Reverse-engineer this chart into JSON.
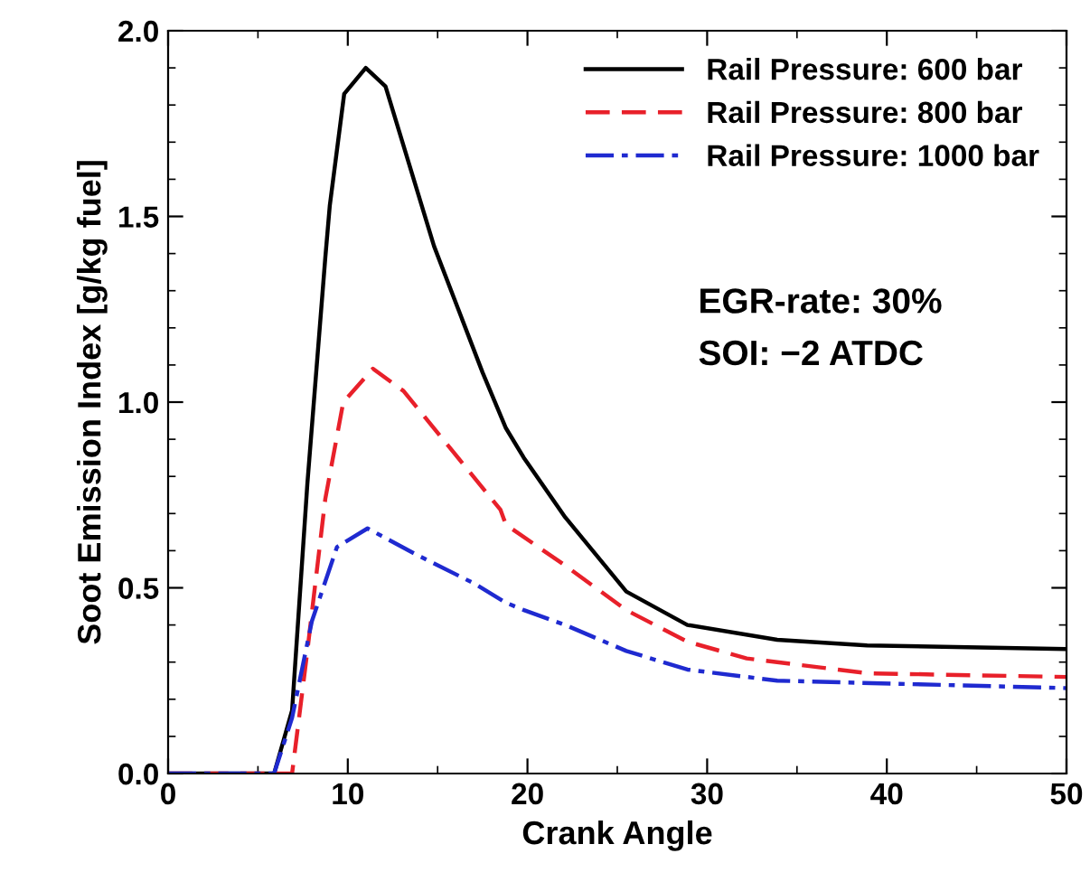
{
  "chart_data": {
    "type": "line",
    "xlabel": "Crank Angle",
    "ylabel": "Soot Emission Index [g/kg fuel]",
    "xlim": [
      0,
      50
    ],
    "ylim": [
      0,
      2.0
    ],
    "xticks": [
      0,
      10,
      20,
      30,
      40,
      50
    ],
    "yticks": [
      {
        "value": 0,
        "label": "0.0"
      },
      {
        "value": 0.5,
        "label": "0.5"
      },
      {
        "value": 1.0,
        "label": "1.0"
      },
      {
        "value": 1.5,
        "label": "1.5"
      },
      {
        "value": 2.0,
        "label": "2.0"
      }
    ],
    "grid": false,
    "legend": "top right",
    "marker": "none",
    "annotations": [
      "EGR-rate: 30%",
      "SOI: −2 ATDC"
    ],
    "series": [
      {
        "name": "Rail Pressure: 600 bar",
        "color": "#000000",
        "line_style": "solid",
        "x": [
          0,
          5.9,
          6.9,
          7.75,
          8.75,
          9.0,
          9.8,
          11.0,
          12.1,
          14.8,
          17.5,
          18.8,
          19.8,
          22.1,
          25.5,
          28.9,
          33.9,
          38.9,
          50
        ],
        "values": [
          0,
          0,
          0.17,
          0.78,
          1.39,
          1.53,
          1.83,
          1.9,
          1.85,
          1.42,
          1.08,
          0.93,
          0.85,
          0.69,
          0.49,
          0.4,
          0.36,
          0.345,
          0.335
        ]
      },
      {
        "name": "Rail Pressure: 800 bar",
        "color": "#e8202a",
        "line_style": "dashed",
        "x": [
          0,
          6.9,
          7.75,
          8.75,
          9.75,
          11.4,
          13.1,
          15.8,
          18.5,
          18.8,
          22.1,
          25.5,
          28.9,
          32.2,
          38.9,
          50
        ],
        "values": [
          0,
          0,
          0.33,
          0.74,
          1.0,
          1.09,
          1.03,
          0.87,
          0.71,
          0.67,
          0.56,
          0.44,
          0.355,
          0.31,
          0.27,
          0.26
        ]
      },
      {
        "name": "Rail Pressure: 1000 bar",
        "color": "#1f2ad0",
        "line_style": "dashdot",
        "x": [
          0,
          5.9,
          6.9,
          8.0,
          9.4,
          11.1,
          13.8,
          17.1,
          18.8,
          19.8,
          22.1,
          25.5,
          28.9,
          33.9,
          50
        ],
        "values": [
          0,
          0,
          0.15,
          0.41,
          0.61,
          0.66,
          0.59,
          0.51,
          0.46,
          0.44,
          0.4,
          0.33,
          0.28,
          0.25,
          0.23
        ]
      }
    ]
  }
}
